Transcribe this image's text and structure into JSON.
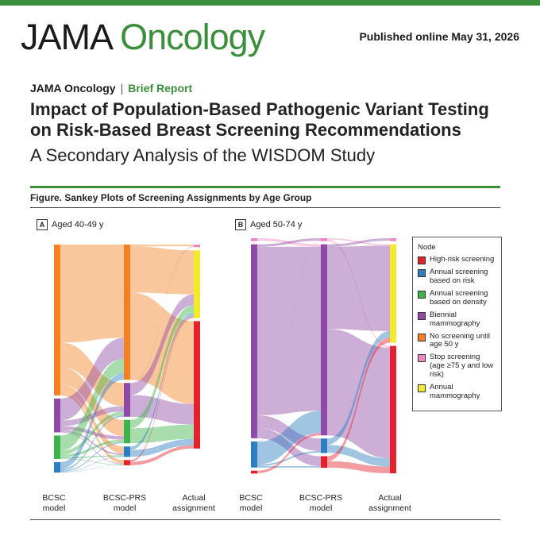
{
  "header": {
    "journal_part1": "JAMA",
    "journal_part2": "Oncology",
    "published": "Published online May 31, 2026",
    "journal_small": "JAMA Oncology",
    "separator": "|",
    "article_type": "Brief Report"
  },
  "article": {
    "title": "Impact of Population-Based Pathogenic Variant Testing on Risk-Based Breast Screening Recommendations",
    "subtitle": "A Secondary Analysis of the WISDOM Study"
  },
  "figure": {
    "caption": "Figure. Sankey Plots of Screening Assignments by Age Group",
    "panels": [
      {
        "letter": "A",
        "title": "Aged 40-49 y"
      },
      {
        "letter": "B",
        "title": "Aged 50-74 y"
      }
    ],
    "axes": {
      "bcsc_line1": "BCSC",
      "bcsc_line2": "model",
      "prs_line1": "BCSC-PRS",
      "prs_line2": "model",
      "actual_line1": "Actual",
      "actual_line2": "assignment"
    },
    "legend": {
      "title": "Node",
      "items": [
        {
          "label": "High-risk screening",
          "color": "#e2232e"
        },
        {
          "label": "Annual screening based on risk",
          "color": "#2c7ec1"
        },
        {
          "label": "Annual screening based on density",
          "color": "#3cb44a"
        },
        {
          "label": "Biennial mammography",
          "color": "#8e4ba6"
        },
        {
          "label": "No screening until age 50 y",
          "color": "#f48024"
        },
        {
          "label": "Stop screening (age ≥75 y and low risk)",
          "color": "#ee87c0"
        },
        {
          "label": "Annual mammography",
          "color": "#f4ea2c"
        }
      ]
    }
  },
  "chart_data": [
    {
      "type": "sankey",
      "title": "Aged 40-49 y",
      "stages": [
        "BCSC model",
        "BCSC-PRS model",
        "Actual assignment"
      ],
      "nodes": {
        "BCSC model": {
          "No screening until age 50 y": 58,
          "Biennial mammography": 13,
          "Annual screening based on density": 9,
          "Annual screening based on risk": 4
        },
        "BCSC-PRS model": {
          "No screening until age 50 y": 52,
          "Biennial mammography": 13,
          "Annual screening based on density": 9,
          "Annual screening based on risk": 4,
          "High-risk screening": 2
        },
        "Actual assignment": {
          "Stop screening (age ≥75 y and low risk)": 1,
          "Annual mammography": 26,
          "High-risk screening": 49
        }
      }
    },
    {
      "type": "sankey",
      "title": "Aged 50-74 y",
      "stages": [
        "BCSC model",
        "BCSC-PRS model",
        "Actual assignment"
      ],
      "nodes": {
        "BCSC model": {
          "Stop screening (age ≥75 y and low risk)": 1,
          "Biennial mammography": 67,
          "Annual screening based on risk": 9,
          "High-risk screening": 1
        },
        "BCSC-PRS model": {
          "Stop screening (age ≥75 y and low risk)": 1,
          "Biennial mammography": 66,
          "Annual screening based on risk": 5,
          "High-risk screening": 4
        },
        "Actual assignment": {
          "Stop screening (age ≥75 y and low risk)": 1,
          "Annual mammography": 34,
          "High-risk screening": 44
        }
      }
    }
  ]
}
